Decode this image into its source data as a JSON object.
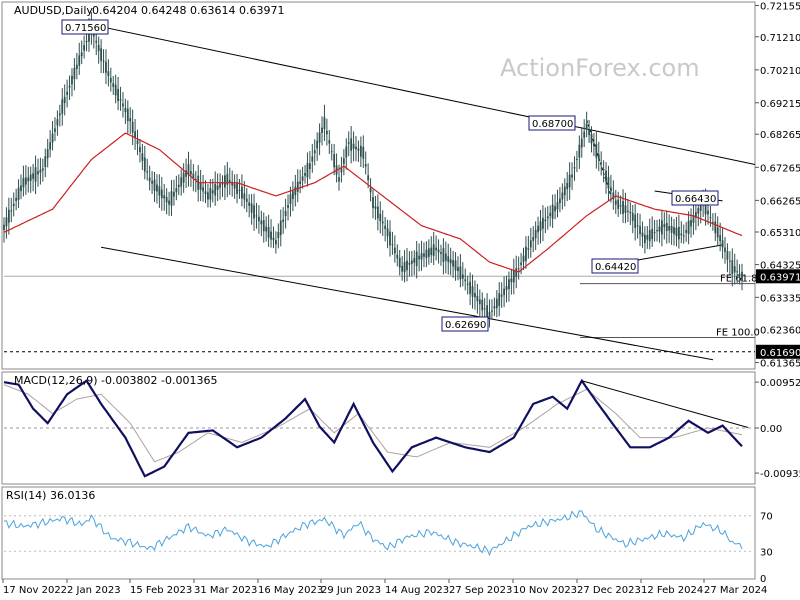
{
  "header": {
    "symbol": "AUDUSD,Daily",
    "ohlc": "0.64204 0.64248 0.63614 0.63971",
    "macd": "MACD(12,26,9) -0.003802 -0.001365",
    "rsi": "RSI(14) 36.0136"
  },
  "watermark": "ActionForex.com",
  "colors": {
    "candle": "#2f4f4f",
    "ma": "#cc2020",
    "macd_line": "#101060",
    "macd_signal": "#b0a0a0",
    "rsi_line": "#4aa3dd",
    "trend": "#000000"
  },
  "chart_data": [
    {
      "type": "candlestick",
      "title": "AUDUSD,Daily",
      "ylim": [
        0.612,
        0.722
      ],
      "yticks": [
        "0.72155",
        "0.71210",
        "0.70210",
        "0.69215",
        "0.68265",
        "0.67265",
        "0.66265",
        "0.65310",
        "0.64325",
        "0.63335",
        "0.62360",
        "0.61365"
      ],
      "ytick_values": [
        0.72155,
        0.7121,
        0.7021,
        0.69215,
        0.68265,
        0.67265,
        0.66265,
        0.6531,
        0.64325,
        0.63335,
        0.6236,
        0.61365
      ],
      "current_price": "0.63971",
      "current_value": 0.63971,
      "support_label": "0.61690",
      "support_value": 0.6169,
      "x_labels": [
        "17 Nov 2022",
        "2 Jan 2023",
        "15 Feb 2023",
        "31 Mar 2023",
        "16 May 2023",
        "29 Jun 2023",
        "14 Aug 2023",
        "27 Sep 2023",
        "10 Nov 2023",
        "27 Dec 2023",
        "12 Feb 2024",
        "27 Mar 2024"
      ],
      "annotations": [
        {
          "text": "0.71560",
          "value": 0.7156,
          "kind": "peak"
        },
        {
          "text": "0.68700",
          "value": 0.687,
          "kind": "peak"
        },
        {
          "text": "0.66430",
          "value": 0.6643,
          "kind": "peak"
        },
        {
          "text": "0.64420",
          "value": 0.6442,
          "kind": "trough"
        },
        {
          "text": "0.62690",
          "value": 0.6269,
          "kind": "trough"
        }
      ],
      "fib_levels": [
        {
          "text": "FE 61.8",
          "value": 0.6375
        },
        {
          "text": "FE 100.0",
          "value": 0.6212
        }
      ],
      "anchors": [
        {
          "t": 0,
          "v": 0.6545
        },
        {
          "t": 8,
          "v": 0.668
        },
        {
          "t": 16,
          "v": 0.672
        },
        {
          "t": 24,
          "v": 0.691
        },
        {
          "t": 30,
          "v": 0.703
        },
        {
          "t": 36,
          "v": 0.7145
        },
        {
          "t": 44,
          "v": 0.699
        },
        {
          "t": 52,
          "v": 0.687
        },
        {
          "t": 60,
          "v": 0.669
        },
        {
          "t": 68,
          "v": 0.662
        },
        {
          "t": 76,
          "v": 0.672
        },
        {
          "t": 84,
          "v": 0.664
        },
        {
          "t": 92,
          "v": 0.669
        },
        {
          "t": 98,
          "v": 0.665
        },
        {
          "t": 104,
          "v": 0.658
        },
        {
          "t": 112,
          "v": 0.65
        },
        {
          "t": 118,
          "v": 0.663
        },
        {
          "t": 126,
          "v": 0.673
        },
        {
          "t": 132,
          "v": 0.686
        },
        {
          "t": 138,
          "v": 0.669
        },
        {
          "t": 142,
          "v": 0.68
        },
        {
          "t": 148,
          "v": 0.677
        },
        {
          "t": 152,
          "v": 0.662
        },
        {
          "t": 158,
          "v": 0.653
        },
        {
          "t": 164,
          "v": 0.642
        },
        {
          "t": 170,
          "v": 0.645
        },
        {
          "t": 178,
          "v": 0.648
        },
        {
          "t": 186,
          "v": 0.643
        },
        {
          "t": 194,
          "v": 0.634
        },
        {
          "t": 200,
          "v": 0.628
        },
        {
          "t": 206,
          "v": 0.635
        },
        {
          "t": 212,
          "v": 0.642
        },
        {
          "t": 220,
          "v": 0.654
        },
        {
          "t": 228,
          "v": 0.661
        },
        {
          "t": 234,
          "v": 0.67
        },
        {
          "t": 240,
          "v": 0.685
        },
        {
          "t": 246,
          "v": 0.674
        },
        {
          "t": 252,
          "v": 0.662
        },
        {
          "t": 258,
          "v": 0.659
        },
        {
          "t": 264,
          "v": 0.651
        },
        {
          "t": 272,
          "v": 0.655
        },
        {
          "t": 280,
          "v": 0.652
        },
        {
          "t": 288,
          "v": 0.662
        },
        {
          "t": 294,
          "v": 0.653
        },
        {
          "t": 300,
          "v": 0.6425
        },
        {
          "t": 304,
          "v": 0.6397
        }
      ],
      "ma": [
        {
          "t": 0,
          "v": 0.653
        },
        {
          "t": 20,
          "v": 0.66
        },
        {
          "t": 36,
          "v": 0.675
        },
        {
          "t": 50,
          "v": 0.683
        },
        {
          "t": 64,
          "v": 0.678
        },
        {
          "t": 80,
          "v": 0.668
        },
        {
          "t": 96,
          "v": 0.668
        },
        {
          "t": 112,
          "v": 0.664
        },
        {
          "t": 128,
          "v": 0.668
        },
        {
          "t": 140,
          "v": 0.673
        },
        {
          "t": 156,
          "v": 0.664
        },
        {
          "t": 172,
          "v": 0.655
        },
        {
          "t": 188,
          "v": 0.651
        },
        {
          "t": 200,
          "v": 0.644
        },
        {
          "t": 212,
          "v": 0.641
        },
        {
          "t": 224,
          "v": 0.648
        },
        {
          "t": 240,
          "v": 0.658
        },
        {
          "t": 252,
          "v": 0.664
        },
        {
          "t": 268,
          "v": 0.66
        },
        {
          "t": 284,
          "v": 0.658
        },
        {
          "t": 304,
          "v": 0.652
        }
      ]
    },
    {
      "type": "line",
      "title": "MACD(12,26,9) -0.003802 -0.001365",
      "ylim": [
        -0.0112,
        0.0112
      ],
      "yticks": [
        "0.009524",
        "0.00",
        "-0.00935"
      ],
      "ytick_values": [
        0.009524,
        0.0,
        -0.00935
      ],
      "current_label": "0.00",
      "series": [
        {
          "name": "MACD",
          "points": [
            {
              "t": 0,
              "v": 0.0095
            },
            {
              "t": 6,
              "v": 0.009
            },
            {
              "t": 12,
              "v": 0.004
            },
            {
              "t": 18,
              "v": 0.001
            },
            {
              "t": 26,
              "v": 0.007
            },
            {
              "t": 34,
              "v": 0.0098
            },
            {
              "t": 40,
              "v": 0.005
            },
            {
              "t": 50,
              "v": -0.002
            },
            {
              "t": 58,
              "v": -0.01
            },
            {
              "t": 66,
              "v": -0.008
            },
            {
              "t": 76,
              "v": -0.001
            },
            {
              "t": 86,
              "v": -0.0005
            },
            {
              "t": 96,
              "v": -0.004
            },
            {
              "t": 106,
              "v": -0.002
            },
            {
              "t": 116,
              "v": 0.002
            },
            {
              "t": 124,
              "v": 0.006
            },
            {
              "t": 130,
              "v": 0.0003
            },
            {
              "t": 136,
              "v": -0.003
            },
            {
              "t": 144,
              "v": 0.005
            },
            {
              "t": 152,
              "v": -0.003
            },
            {
              "t": 160,
              "v": -0.009
            },
            {
              "t": 168,
              "v": -0.004
            },
            {
              "t": 178,
              "v": -0.002
            },
            {
              "t": 190,
              "v": -0.004
            },
            {
              "t": 200,
              "v": -0.005
            },
            {
              "t": 210,
              "v": -0.002
            },
            {
              "t": 218,
              "v": 0.005
            },
            {
              "t": 226,
              "v": 0.0065
            },
            {
              "t": 232,
              "v": 0.004
            },
            {
              "t": 238,
              "v": 0.0098
            },
            {
              "t": 244,
              "v": 0.0055
            },
            {
              "t": 252,
              "v": 0.0
            },
            {
              "t": 258,
              "v": -0.004
            },
            {
              "t": 266,
              "v": -0.004
            },
            {
              "t": 274,
              "v": -0.002
            },
            {
              "t": 282,
              "v": 0.0015
            },
            {
              "t": 290,
              "v": -0.001
            },
            {
              "t": 296,
              "v": 0.0005
            },
            {
              "t": 304,
              "v": -0.0038
            }
          ]
        },
        {
          "name": "Signal",
          "points": [
            {
              "t": 0,
              "v": 0.009
            },
            {
              "t": 10,
              "v": 0.007
            },
            {
              "t": 20,
              "v": 0.003
            },
            {
              "t": 30,
              "v": 0.006
            },
            {
              "t": 40,
              "v": 0.007
            },
            {
              "t": 52,
              "v": 0.001
            },
            {
              "t": 62,
              "v": -0.007
            },
            {
              "t": 72,
              "v": -0.005
            },
            {
              "t": 84,
              "v": -0.001
            },
            {
              "t": 98,
              "v": -0.003
            },
            {
              "t": 112,
              "v": 0.0
            },
            {
              "t": 126,
              "v": 0.004
            },
            {
              "t": 136,
              "v": -0.001
            },
            {
              "t": 146,
              "v": 0.003
            },
            {
              "t": 158,
              "v": -0.005
            },
            {
              "t": 170,
              "v": -0.006
            },
            {
              "t": 184,
              "v": -0.003
            },
            {
              "t": 200,
              "v": -0.004
            },
            {
              "t": 214,
              "v": 0.0
            },
            {
              "t": 228,
              "v": 0.005
            },
            {
              "t": 240,
              "v": 0.008
            },
            {
              "t": 252,
              "v": 0.003
            },
            {
              "t": 262,
              "v": -0.002
            },
            {
              "t": 276,
              "v": -0.002
            },
            {
              "t": 290,
              "v": 0.0
            },
            {
              "t": 304,
              "v": -0.0014
            }
          ]
        }
      ]
    },
    {
      "type": "line",
      "title": "RSI(14) 36.0136",
      "ylim": [
        0,
        100
      ],
      "yticks": [
        "70",
        "30",
        "0"
      ],
      "ytick_values": [
        70,
        30,
        0
      ],
      "series": [
        {
          "name": "RSI(14)",
          "points": [
            {
              "t": 0,
              "v": 62
            },
            {
              "t": 8,
              "v": 58
            },
            {
              "t": 16,
              "v": 62
            },
            {
              "t": 24,
              "v": 67
            },
            {
              "t": 32,
              "v": 60
            },
            {
              "t": 36,
              "v": 68
            },
            {
              "t": 44,
              "v": 45
            },
            {
              "t": 52,
              "v": 40
            },
            {
              "t": 60,
              "v": 33
            },
            {
              "t": 68,
              "v": 45
            },
            {
              "t": 76,
              "v": 58
            },
            {
              "t": 84,
              "v": 47
            },
            {
              "t": 92,
              "v": 55
            },
            {
              "t": 100,
              "v": 42
            },
            {
              "t": 108,
              "v": 35
            },
            {
              "t": 116,
              "v": 48
            },
            {
              "t": 124,
              "v": 60
            },
            {
              "t": 132,
              "v": 66
            },
            {
              "t": 140,
              "v": 48
            },
            {
              "t": 146,
              "v": 62
            },
            {
              "t": 152,
              "v": 44
            },
            {
              "t": 158,
              "v": 34
            },
            {
              "t": 166,
              "v": 46
            },
            {
              "t": 176,
              "v": 52
            },
            {
              "t": 186,
              "v": 40
            },
            {
              "t": 194,
              "v": 35
            },
            {
              "t": 200,
              "v": 30
            },
            {
              "t": 208,
              "v": 44
            },
            {
              "t": 216,
              "v": 58
            },
            {
              "t": 224,
              "v": 63
            },
            {
              "t": 232,
              "v": 68
            },
            {
              "t": 238,
              "v": 74
            },
            {
              "t": 244,
              "v": 55
            },
            {
              "t": 250,
              "v": 46
            },
            {
              "t": 256,
              "v": 38
            },
            {
              "t": 264,
              "v": 44
            },
            {
              "t": 272,
              "v": 50
            },
            {
              "t": 280,
              "v": 45
            },
            {
              "t": 288,
              "v": 61
            },
            {
              "t": 296,
              "v": 52
            },
            {
              "t": 300,
              "v": 40
            },
            {
              "t": 304,
              "v": 36
            }
          ]
        }
      ]
    }
  ]
}
